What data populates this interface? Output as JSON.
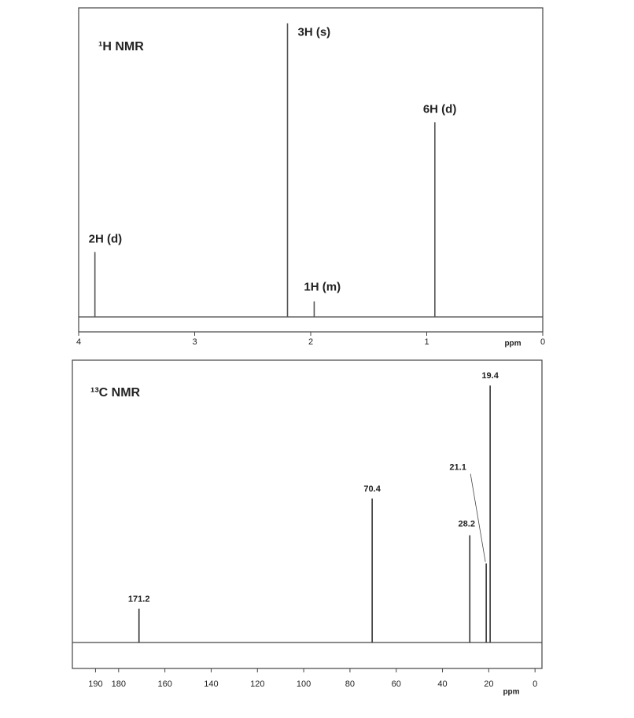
{
  "chart_data": [
    {
      "type": "spectrum",
      "title": "¹H NMR",
      "xlabel": "ppm",
      "xlim": [
        4,
        0
      ],
      "xticks": [
        4,
        3,
        2,
        1,
        0
      ],
      "x": [
        3.86,
        2.2,
        1.97,
        0.93
      ],
      "values": [
        21,
        95,
        5,
        63
      ],
      "annotations": [
        "2H (d)",
        "3H (s)",
        "1H (m)",
        "6H (d)"
      ],
      "color": "#555555"
    },
    {
      "type": "spectrum",
      "title": "¹³C NMR",
      "xlabel": "ppm",
      "xlim": [
        200,
        -3
      ],
      "xticks": [
        190,
        180,
        160,
        140,
        120,
        100,
        80,
        60,
        40,
        20,
        0
      ],
      "x": [
        171.2,
        70.4,
        28.2,
        21.1,
        19.4
      ],
      "values": [
        12,
        51,
        38,
        28,
        91
      ],
      "annotations": [
        "171.2",
        "70.4",
        "28.2",
        "21.1",
        "19.4"
      ],
      "color": "#333333"
    }
  ]
}
